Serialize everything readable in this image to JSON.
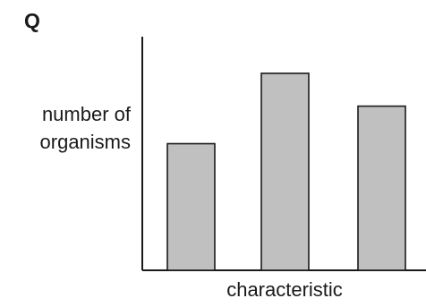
{
  "chart_data": {
    "type": "bar",
    "title": "Q",
    "ylabel_lines": [
      "number of",
      "organisms"
    ],
    "xlabel": "characteristic",
    "categories": [
      "",
      "",
      ""
    ],
    "values": [
      5.4,
      8.4,
      7.0
    ],
    "ylim": [
      0,
      10
    ],
    "grid": false,
    "legend": "none",
    "colors": {
      "bar_fill": "#c0c0c0",
      "bar_stroke": "#1a1a1a",
      "axis": "#1a1a1a"
    }
  }
}
